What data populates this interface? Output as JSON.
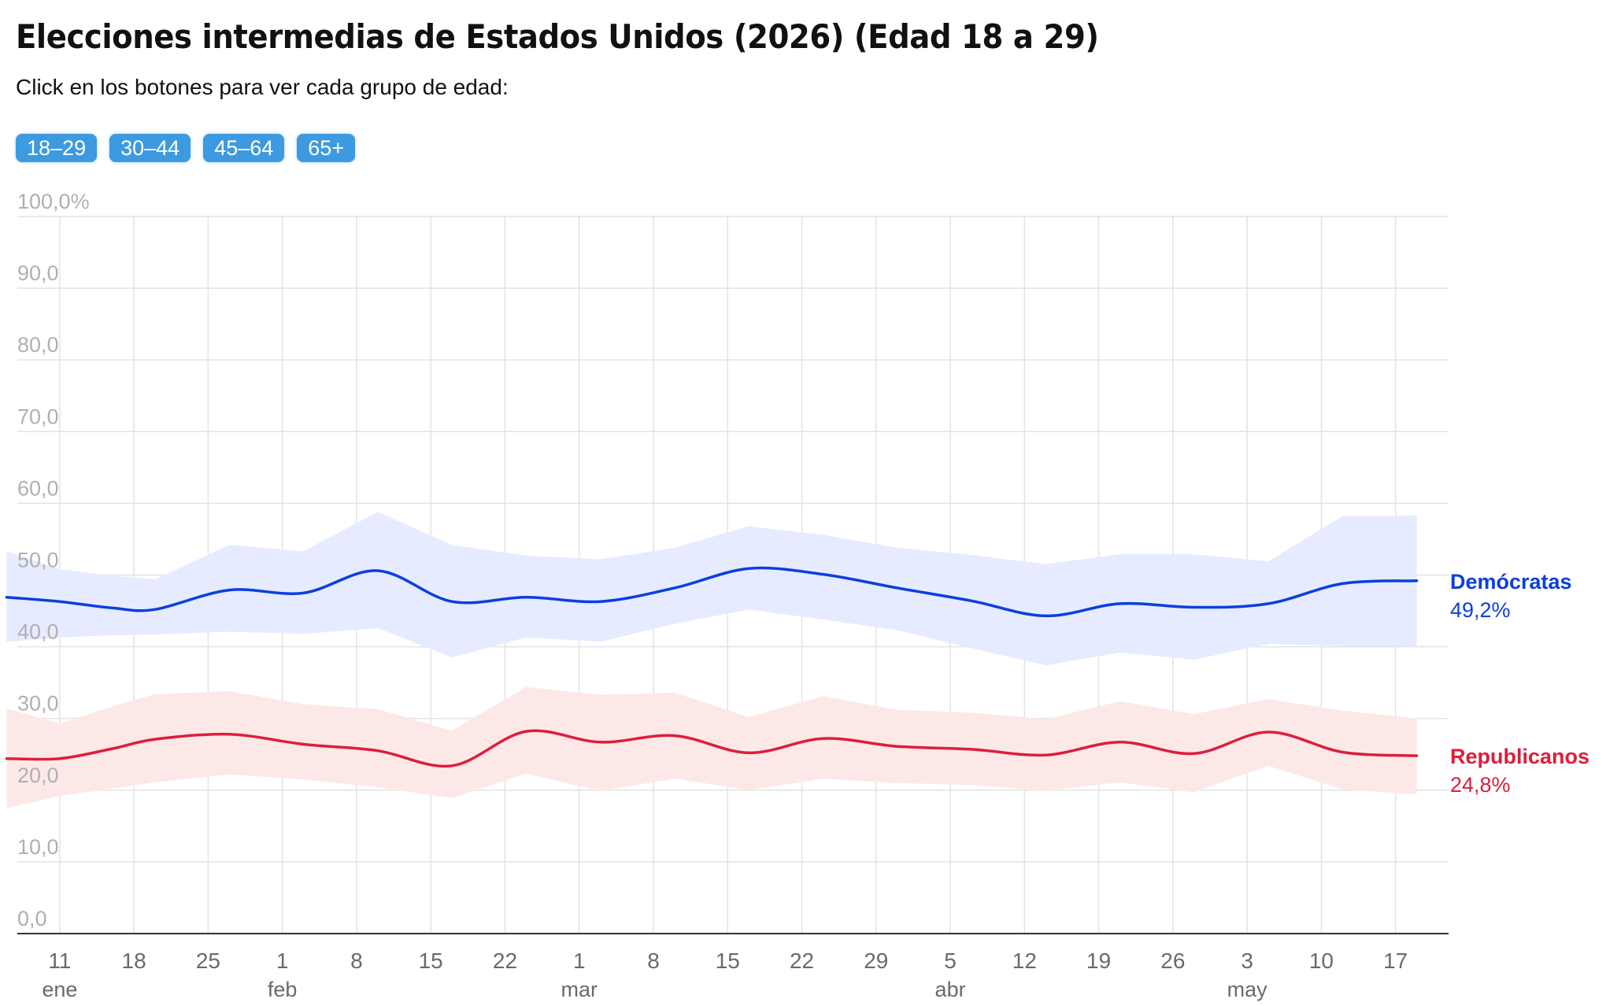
{
  "header": {
    "title": "Elecciones intermedias de Estados Unidos (2026) (Edad 18 a 29)",
    "subtitle": "Click en los botones para ver cada grupo de edad:"
  },
  "buttons": [
    {
      "label": "18–29"
    },
    {
      "label": "30–44"
    },
    {
      "label": "45–64"
    },
    {
      "label": "65+"
    }
  ],
  "chart_data": {
    "type": "line",
    "ylim": [
      0,
      100
    ],
    "yticks": [
      {
        "value": 100,
        "label": "100,0%"
      },
      {
        "value": 90,
        "label": "90,0"
      },
      {
        "value": 80,
        "label": "80,0"
      },
      {
        "value": 70,
        "label": "70,0"
      },
      {
        "value": 60,
        "label": "60,0"
      },
      {
        "value": 50,
        "label": "50,0"
      },
      {
        "value": 40,
        "label": "40,0"
      },
      {
        "value": 30,
        "label": "30,0"
      },
      {
        "value": 20,
        "label": "20,0"
      },
      {
        "value": 10,
        "label": "10,0"
      },
      {
        "value": 0,
        "label": "0,0"
      }
    ],
    "xlim": [
      "2026-01-07",
      "2026-05-22"
    ],
    "xticks": [
      {
        "date": "2026-01-11",
        "label": "11",
        "month": "ene"
      },
      {
        "date": "2026-01-18",
        "label": "18"
      },
      {
        "date": "2026-01-25",
        "label": "25"
      },
      {
        "date": "2026-02-01",
        "label": "1",
        "month": "feb"
      },
      {
        "date": "2026-02-08",
        "label": "8"
      },
      {
        "date": "2026-02-15",
        "label": "15"
      },
      {
        "date": "2026-02-22",
        "label": "22"
      },
      {
        "date": "2026-03-01",
        "label": "1",
        "month": "mar"
      },
      {
        "date": "2026-03-08",
        "label": "8"
      },
      {
        "date": "2026-03-15",
        "label": "15"
      },
      {
        "date": "2026-03-22",
        "label": "22"
      },
      {
        "date": "2026-03-29",
        "label": "29"
      },
      {
        "date": "2026-04-05",
        "label": "5",
        "month": "abr"
      },
      {
        "date": "2026-04-12",
        "label": "12"
      },
      {
        "date": "2026-04-19",
        "label": "19"
      },
      {
        "date": "2026-04-26",
        "label": "26"
      },
      {
        "date": "2026-05-03",
        "label": "3",
        "month": "may"
      },
      {
        "date": "2026-05-10",
        "label": "10"
      },
      {
        "date": "2026-05-17",
        "label": "17"
      }
    ],
    "grid": true,
    "legend": "end-of-line labels (right)",
    "series": [
      {
        "name": "Demócratas",
        "end_label": "49,2%",
        "color": "#0b3fdf",
        "band_color": "#e6ebff",
        "x": [
          "2026-01-06",
          "2026-01-11",
          "2026-01-16",
          "2026-01-20",
          "2026-01-27",
          "2026-02-03",
          "2026-02-10",
          "2026-02-17",
          "2026-02-24",
          "2026-03-03",
          "2026-03-10",
          "2026-03-17",
          "2026-03-24",
          "2026-03-31",
          "2026-04-07",
          "2026-04-14",
          "2026-04-21",
          "2026-04-28",
          "2026-05-05",
          "2026-05-12",
          "2026-05-19"
        ],
        "values": [
          46.9,
          46.3,
          45.4,
          45.2,
          47.9,
          47.5,
          50.6,
          46.3,
          46.9,
          46.3,
          48.2,
          50.9,
          50.1,
          48.2,
          46.4,
          44.3,
          46.0,
          45.5,
          46.0,
          48.8,
          49.2
        ],
        "upper": [
          53.3,
          50.8,
          49.9,
          49.4,
          54.2,
          53.3,
          58.8,
          54.2,
          52.7,
          52.2,
          53.8,
          56.8,
          55.6,
          53.8,
          52.8,
          51.5,
          52.9,
          52.9,
          51.9,
          58.2,
          58.3
        ],
        "lower": [
          40.7,
          41.3,
          41.6,
          41.7,
          42.1,
          41.8,
          42.6,
          38.5,
          41.3,
          40.7,
          43.2,
          45.2,
          43.8,
          42.3,
          39.8,
          37.4,
          39.2,
          38.2,
          40.4,
          40.1,
          40.0
        ]
      },
      {
        "name": "Republicanos",
        "end_label": "24,8%",
        "color": "#dc1e3c",
        "band_color": "#fde8e8",
        "x": [
          "2026-01-06",
          "2026-01-11",
          "2026-01-16",
          "2026-01-20",
          "2026-01-27",
          "2026-02-03",
          "2026-02-10",
          "2026-02-17",
          "2026-02-24",
          "2026-03-03",
          "2026-03-10",
          "2026-03-17",
          "2026-03-24",
          "2026-03-31",
          "2026-04-07",
          "2026-04-14",
          "2026-04-21",
          "2026-04-28",
          "2026-05-05",
          "2026-05-12",
          "2026-05-19"
        ],
        "values": [
          24.4,
          24.4,
          25.8,
          27.1,
          27.8,
          26.4,
          25.5,
          23.4,
          28.2,
          26.7,
          27.6,
          25.2,
          27.2,
          26.1,
          25.7,
          24.9,
          26.7,
          25.1,
          28.1,
          25.3,
          24.8
        ],
        "upper": [
          31.4,
          29.3,
          31.7,
          33.4,
          33.8,
          32.0,
          31.3,
          28.3,
          34.4,
          33.3,
          33.6,
          30.2,
          33.1,
          31.2,
          30.8,
          29.9,
          32.4,
          30.6,
          32.7,
          31.1,
          30.0
        ],
        "lower": [
          17.5,
          19.2,
          20.2,
          21.1,
          22.2,
          21.5,
          20.4,
          18.9,
          22.3,
          19.9,
          21.6,
          20.0,
          21.6,
          21.0,
          20.7,
          19.9,
          21.1,
          19.7,
          23.4,
          20.1,
          19.4
        ]
      }
    ]
  }
}
